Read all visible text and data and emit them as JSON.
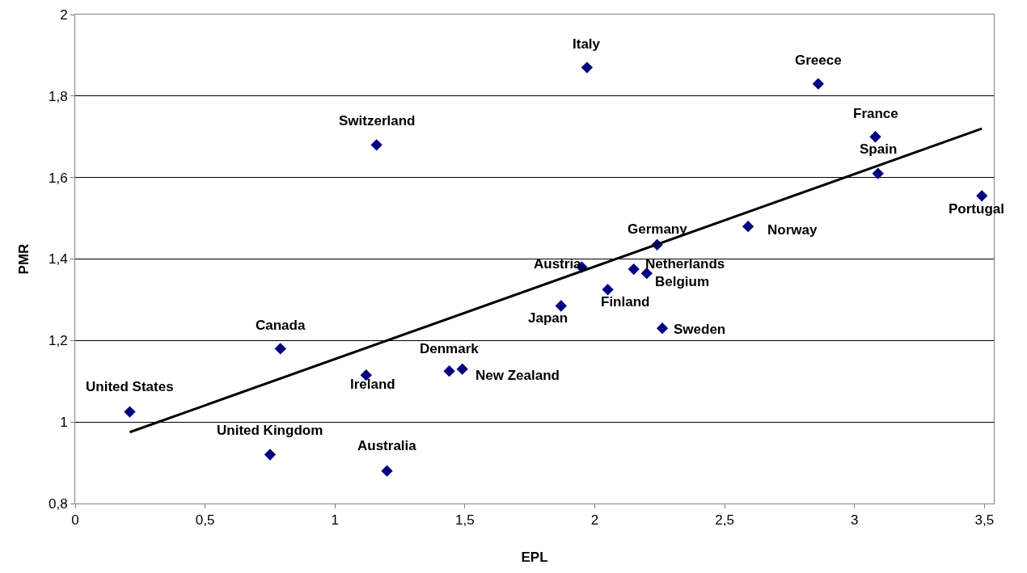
{
  "chart_data": {
    "type": "scatter",
    "xlabel": "EPL",
    "ylabel": "PMR",
    "marker": "diamond",
    "grid": "y",
    "xlim": [
      0,
      3.536
    ],
    "xticks": [
      0,
      {
        "value": 0.5,
        "label": "0,5"
      },
      1,
      {
        "value": 1.5,
        "label": "1,5"
      },
      2,
      {
        "value": 2.5,
        "label": "2,5"
      },
      3,
      {
        "value": 3.5,
        "label": "3,5"
      }
    ],
    "ylim": [
      0.8,
      2
    ],
    "yticks": [
      {
        "value": 0.8,
        "label": "0,8"
      },
      1,
      {
        "value": 1.2,
        "label": "1,2"
      },
      {
        "value": 1.4,
        "label": "1,4"
      },
      {
        "value": 1.6,
        "label": "1,6"
      },
      {
        "value": 1.8,
        "label": "1,8"
      },
      2
    ],
    "series": [
      {
        "color": "#000080",
        "x": [
          0.21,
          0.75,
          0.79,
          1.2,
          1.12,
          1.16,
          1.44,
          1.49,
          1.87,
          1.95,
          1.97,
          2.05,
          2.15,
          2.2,
          2.24,
          2.26,
          2.59,
          2.86,
          3.08,
          3.09,
          3.49
        ],
        "values": [
          1.025,
          0.92,
          1.18,
          0.88,
          1.115,
          1.68,
          1.125,
          1.13,
          1.285,
          1.38,
          1.87,
          1.325,
          1.375,
          1.365,
          1.435,
          1.23,
          1.48,
          1.83,
          1.7,
          1.61,
          1.555
        ]
      },
      {
        "type": "line",
        "color": "#000000",
        "marker": "none",
        "x": [
          0.21,
          3.49
        ],
        "values": [
          0.975,
          1.72
        ]
      }
    ],
    "annotations": [
      {
        "text": "United States",
        "x": 0.21,
        "y": 1.025
      },
      {
        "text": "United Kingdom",
        "x": 0.75,
        "y": 0.92
      },
      {
        "text": "Canada",
        "x": 0.79,
        "y": 1.18
      },
      {
        "text": "Australia",
        "x": 1.2,
        "y": 0.88
      },
      {
        "text": "Ireland",
        "x": 1.12,
        "y": 1.115
      },
      {
        "text": "Switzerland",
        "x": 1.16,
        "y": 1.68
      },
      {
        "text": "Denmark",
        "x": 1.44,
        "y": 1.125
      },
      {
        "text": "New Zealand",
        "x": 1.49,
        "y": 1.13
      },
      {
        "text": "Japan",
        "x": 1.87,
        "y": 1.285
      },
      {
        "text": "Austria",
        "x": 1.95,
        "y": 1.38
      },
      {
        "text": "Italy",
        "x": 1.97,
        "y": 1.87
      },
      {
        "text": "Finland",
        "x": 2.05,
        "y": 1.325
      },
      {
        "text": "Netherlands",
        "x": 2.15,
        "y": 1.375
      },
      {
        "text": "Belgium",
        "x": 2.2,
        "y": 1.365
      },
      {
        "text": "Germany",
        "x": 2.24,
        "y": 1.435
      },
      {
        "text": "Sweden",
        "x": 2.26,
        "y": 1.23
      },
      {
        "text": "Norway",
        "x": 2.59,
        "y": 1.48
      },
      {
        "text": "Greece",
        "x": 2.86,
        "y": 1.83
      },
      {
        "text": "France",
        "x": 3.08,
        "y": 1.7
      },
      {
        "text": "Spain",
        "x": 3.09,
        "y": 1.61
      },
      {
        "text": "Portugal",
        "x": 3.49,
        "y": 1.555
      }
    ]
  }
}
